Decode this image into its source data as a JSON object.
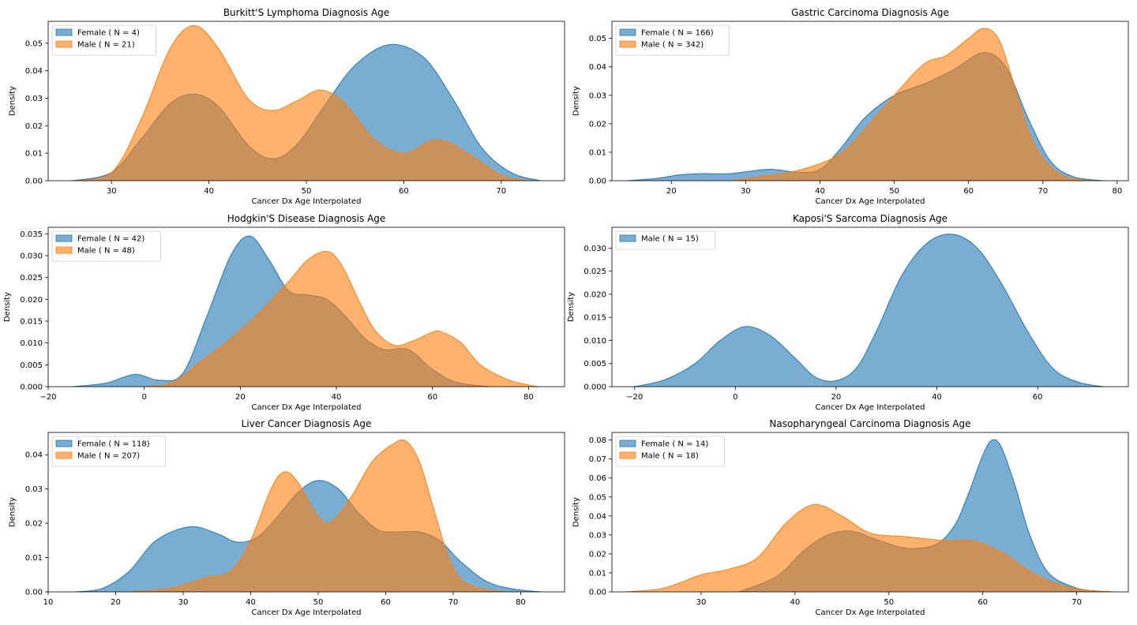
{
  "colors": {
    "female": "#1f77b4",
    "male": "#ff7f0e"
  },
  "chart_data": [
    {
      "type": "area",
      "title": "Burkitt'S Lymphoma Diagnosis Age",
      "xlabel": "Cancer Dx Age Interpolated",
      "ylabel": "Density",
      "xlim": [
        23.5,
        76.5
      ],
      "ylim": [
        0,
        0.058
      ],
      "xticks": [
        30,
        40,
        50,
        60,
        70
      ],
      "xtick_labels": [
        "30",
        "40",
        "50",
        "60",
        "70"
      ],
      "yticks": [
        0,
        0.01,
        0.02,
        0.03,
        0.04,
        0.05
      ],
      "ytick_labels": [
        "0.00",
        "0.01",
        "0.02",
        "0.03",
        "0.04",
        "0.05"
      ],
      "legend": "top-left",
      "grid": false,
      "series": [
        {
          "name": "Female ( N = 4)",
          "color": "female",
          "x": [
            26,
            30,
            33,
            36,
            38.5,
            41,
            44,
            46.5,
            49,
            52,
            55,
            58.5,
            62,
            65,
            68,
            71,
            74
          ],
          "y": [
            0,
            0.003,
            0.015,
            0.028,
            0.0315,
            0.027,
            0.013,
            0.008,
            0.013,
            0.028,
            0.042,
            0.0495,
            0.045,
            0.03,
            0.012,
            0.003,
            0
          ]
        },
        {
          "name": "Male ( N = 21)",
          "color": "male",
          "x": [
            26,
            30,
            33,
            36,
            38.5,
            41,
            44,
            46.5,
            49,
            51.5,
            54,
            57,
            60,
            63.5,
            67,
            70,
            73
          ],
          "y": [
            0,
            0.003,
            0.022,
            0.048,
            0.0565,
            0.048,
            0.03,
            0.0255,
            0.029,
            0.033,
            0.028,
            0.015,
            0.01,
            0.015,
            0.009,
            0.002,
            0
          ]
        }
      ]
    },
    {
      "type": "area",
      "title": "Gastric Carcinoma Diagnosis Age",
      "xlabel": "Cancer Dx Age Interpolated",
      "ylabel": "Density",
      "xlim": [
        12,
        81.5
      ],
      "ylim": [
        0,
        0.056
      ],
      "xticks": [
        20,
        30,
        40,
        50,
        60,
        70,
        80
      ],
      "xtick_labels": [
        "20",
        "30",
        "40",
        "50",
        "60",
        "70",
        "80"
      ],
      "yticks": [
        0,
        0.01,
        0.02,
        0.03,
        0.04,
        0.05
      ],
      "ytick_labels": [
        "0.00",
        "0.01",
        "0.02",
        "0.03",
        "0.04",
        "0.05"
      ],
      "legend": "top-left",
      "grid": false,
      "series": [
        {
          "name": "Female ( N = 166)",
          "color": "female",
          "x": [
            14,
            18,
            21,
            24,
            28,
            33,
            37,
            40,
            43,
            46,
            50,
            54,
            58,
            62,
            65,
            68,
            71,
            74,
            78
          ],
          "y": [
            0,
            0.0008,
            0.002,
            0.0025,
            0.0025,
            0.004,
            0.003,
            0.004,
            0.012,
            0.022,
            0.03,
            0.034,
            0.039,
            0.045,
            0.04,
            0.022,
            0.007,
            0.0015,
            0
          ]
        },
        {
          "name": "Male ( N = 342)",
          "color": "male",
          "x": [
            28,
            32,
            36,
            40,
            43,
            46,
            50,
            54,
            57,
            60,
            62,
            64,
            66,
            68,
            70,
            73,
            77
          ],
          "y": [
            0,
            0.0015,
            0.003,
            0.006,
            0.01,
            0.018,
            0.03,
            0.041,
            0.044,
            0.05,
            0.0535,
            0.05,
            0.035,
            0.018,
            0.008,
            0.0015,
            0
          ]
        }
      ]
    },
    {
      "type": "area",
      "title": "Hodgkin'S Disease Diagnosis Age",
      "xlabel": "Cancer Dx Age Interpolated",
      "ylabel": "Density",
      "xlim": [
        -20,
        87.5
      ],
      "ylim": [
        0,
        0.0365
      ],
      "xticks": [
        -20,
        0,
        20,
        40,
        60,
        80
      ],
      "xtick_labels": [
        "−20",
        "0",
        "20",
        "40",
        "60",
        "80"
      ],
      "yticks": [
        0,
        0.005,
        0.01,
        0.015,
        0.02,
        0.025,
        0.03,
        0.035
      ],
      "ytick_labels": [
        "0.000",
        "0.005",
        "0.010",
        "0.015",
        "0.020",
        "0.025",
        "0.030",
        "0.035"
      ],
      "legend": "top-left",
      "grid": false,
      "series": [
        {
          "name": "Female ( N = 42)",
          "color": "female",
          "x": [
            -15,
            -8,
            -2,
            3,
            8,
            13,
            18,
            22,
            26,
            30,
            34,
            38,
            42,
            46,
            50,
            55,
            60,
            65,
            72
          ],
          "y": [
            0,
            0.0008,
            0.0028,
            0.0015,
            0.003,
            0.016,
            0.03,
            0.0345,
            0.029,
            0.022,
            0.021,
            0.02,
            0.016,
            0.011,
            0.0085,
            0.0085,
            0.004,
            0.001,
            0
          ]
        },
        {
          "name": "Male ( N = 48)",
          "color": "male",
          "x": [
            0,
            6,
            12,
            18,
            24,
            30,
            34,
            38,
            41,
            45,
            48,
            52,
            56,
            60,
            62,
            66,
            70,
            76,
            82
          ],
          "y": [
            0,
            0.001,
            0.006,
            0.011,
            0.017,
            0.024,
            0.029,
            0.031,
            0.028,
            0.019,
            0.013,
            0.0095,
            0.0105,
            0.0125,
            0.0125,
            0.01,
            0.005,
            0.0015,
            0
          ]
        }
      ]
    },
    {
      "type": "area",
      "title": "Kaposi'S Sarcoma Diagnosis Age",
      "xlabel": "Cancer Dx Age Interpolated",
      "ylabel": "Density",
      "xlim": [
        -24.5,
        78
      ],
      "ylim": [
        0,
        0.0345
      ],
      "xticks": [
        -20,
        0,
        20,
        40,
        60
      ],
      "xtick_labels": [
        "−20",
        "0",
        "20",
        "40",
        "60"
      ],
      "yticks": [
        0,
        0.005,
        0.01,
        0.015,
        0.02,
        0.025,
        0.03
      ],
      "ytick_labels": [
        "0.000",
        "0.005",
        "0.010",
        "0.015",
        "0.020",
        "0.025",
        "0.030"
      ],
      "legend": "top-left",
      "grid": false,
      "series": [
        {
          "name": "Male ( N = 15)",
          "color": "female",
          "x": [
            -20,
            -14,
            -8,
            -3,
            2,
            7,
            12,
            16,
            20,
            24,
            28,
            33,
            38,
            43,
            48,
            53,
            58,
            63,
            68,
            73
          ],
          "y": [
            0,
            0.0015,
            0.005,
            0.01,
            0.013,
            0.011,
            0.006,
            0.002,
            0.0013,
            0.004,
            0.012,
            0.024,
            0.031,
            0.033,
            0.03,
            0.022,
            0.012,
            0.004,
            0.001,
            0
          ]
        }
      ]
    },
    {
      "type": "area",
      "title": "Liver Cancer Diagnosis Age",
      "xlabel": "Cancer Dx Age Interpolated",
      "ylabel": "Density",
      "xlim": [
        10,
        86.5
      ],
      "ylim": [
        0,
        0.0465
      ],
      "xticks": [
        10,
        20,
        30,
        40,
        50,
        60,
        70,
        80
      ],
      "xtick_labels": [
        "10",
        "20",
        "30",
        "40",
        "50",
        "60",
        "70",
        "80"
      ],
      "yticks": [
        0,
        0.01,
        0.02,
        0.03,
        0.04
      ],
      "ytick_labels": [
        "0.00",
        "0.01",
        "0.02",
        "0.03",
        "0.04"
      ],
      "legend": "top-left",
      "grid": false,
      "series": [
        {
          "name": "Female ( N = 118)",
          "color": "female",
          "x": [
            14,
            18,
            22,
            26,
            31,
            35,
            38,
            41,
            44,
            47,
            50,
            53,
            56,
            59,
            62,
            65,
            68,
            71,
            75,
            79,
            83
          ],
          "y": [
            0,
            0.001,
            0.006,
            0.015,
            0.019,
            0.017,
            0.0145,
            0.016,
            0.022,
            0.029,
            0.0325,
            0.03,
            0.023,
            0.018,
            0.0175,
            0.0175,
            0.015,
            0.009,
            0.003,
            0.0008,
            0
          ]
        },
        {
          "name": "Male ( N = 207)",
          "color": "male",
          "x": [
            22,
            28,
            33,
            37,
            40,
            43,
            45,
            47,
            50,
            52,
            55,
            58,
            61,
            63,
            65,
            67,
            69,
            71,
            74,
            78
          ],
          "y": [
            0,
            0.001,
            0.004,
            0.006,
            0.015,
            0.03,
            0.035,
            0.032,
            0.022,
            0.0205,
            0.028,
            0.038,
            0.043,
            0.044,
            0.038,
            0.025,
            0.012,
            0.004,
            0.001,
            0
          ]
        }
      ]
    },
    {
      "type": "area",
      "title": "Nasopharyngeal Carcinoma Diagnosis Age",
      "xlabel": "Cancer Dx Age Interpolated",
      "ylabel": "Density",
      "xlim": [
        20.5,
        75.5
      ],
      "ylim": [
        0,
        0.084
      ],
      "xticks": [
        30,
        40,
        50,
        60,
        70
      ],
      "xtick_labels": [
        "30",
        "40",
        "50",
        "60",
        "70"
      ],
      "yticks": [
        0,
        0.01,
        0.02,
        0.03,
        0.04,
        0.05,
        0.06,
        0.07,
        0.08
      ],
      "ytick_labels": [
        "0.00",
        "0.01",
        "0.02",
        "0.03",
        "0.04",
        "0.05",
        "0.06",
        "0.07",
        "0.08"
      ],
      "legend": "top-left",
      "grid": false,
      "series": [
        {
          "name": "Female ( N = 14)",
          "color": "female",
          "x": [
            34,
            38,
            41,
            43.5,
            46,
            49,
            52,
            55,
            57,
            58.5,
            60,
            61,
            62,
            63.5,
            65,
            67,
            70,
            73
          ],
          "y": [
            0,
            0.008,
            0.022,
            0.03,
            0.032,
            0.027,
            0.023,
            0.025,
            0.035,
            0.052,
            0.072,
            0.08,
            0.076,
            0.055,
            0.03,
            0.01,
            0.002,
            0
          ]
        },
        {
          "name": "Male ( N = 18)",
          "color": "male",
          "x": [
            22,
            26,
            30,
            33,
            36,
            39,
            42,
            45,
            48,
            52,
            56,
            59,
            62,
            65,
            68,
            71,
            74
          ],
          "y": [
            0,
            0.002,
            0.009,
            0.012,
            0.018,
            0.036,
            0.046,
            0.04,
            0.031,
            0.029,
            0.027,
            0.027,
            0.021,
            0.011,
            0.004,
            0.001,
            0
          ]
        }
      ]
    }
  ]
}
